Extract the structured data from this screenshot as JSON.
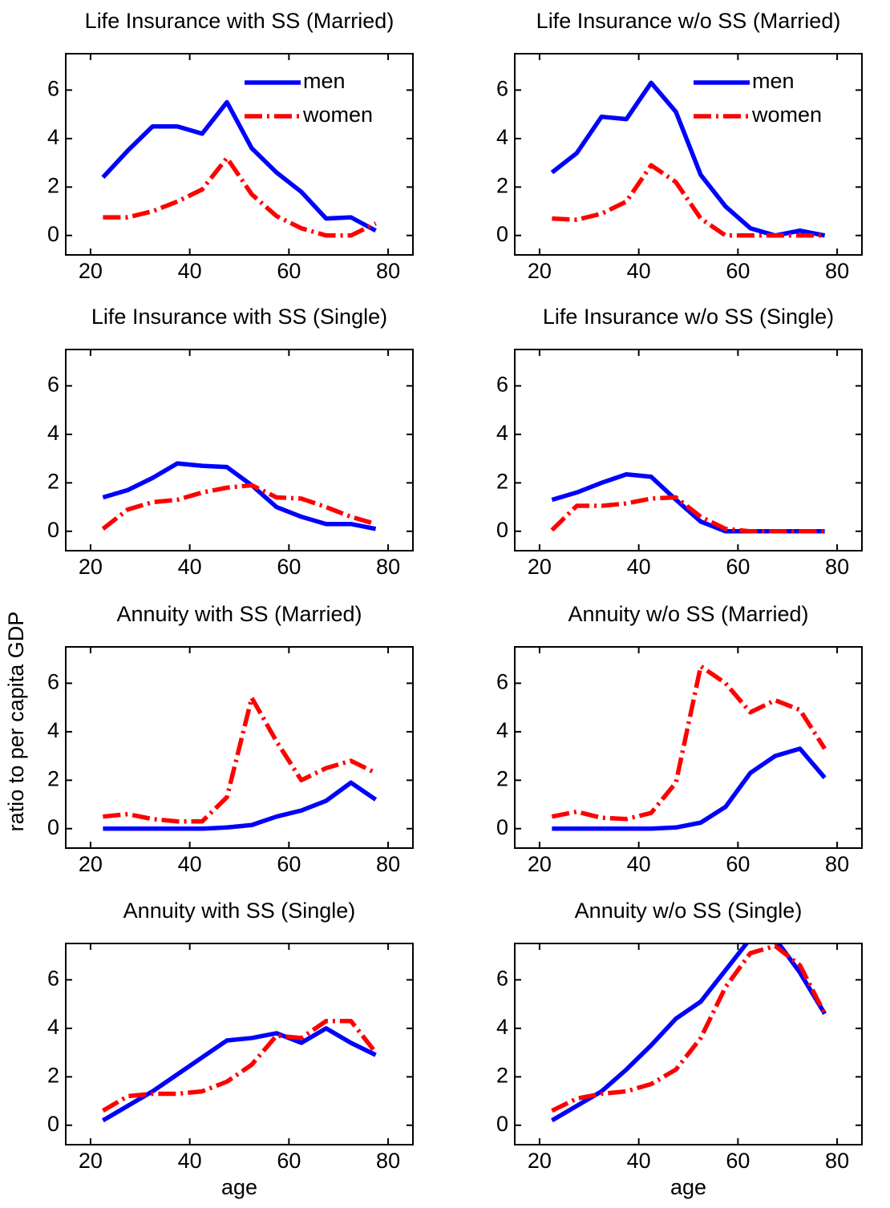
{
  "ylabel": "ratio to per capita GDP",
  "chart_data": [
    {
      "type": "line",
      "title": "Life Insurance with SS (Married)",
      "legend": "upper right",
      "x": [
        22.5,
        27.5,
        32.5,
        37.5,
        42.5,
        47.5,
        52.5,
        57.5,
        62.5,
        67.5,
        72.5,
        77.5
      ],
      "series": [
        {
          "name": "men",
          "color": "#0000ff",
          "style": "solid",
          "values": [
            2.4,
            3.5,
            4.5,
            4.5,
            4.2,
            5.5,
            3.6,
            2.6,
            1.8,
            0.7,
            0.75,
            0.2
          ]
        },
        {
          "name": "women",
          "color": "#ff0000",
          "style": "dashdot",
          "values": [
            0.75,
            0.75,
            1.0,
            1.4,
            1.9,
            3.2,
            1.7,
            0.8,
            0.3,
            0,
            0,
            0.5
          ]
        }
      ],
      "xlim": [
        15,
        85
      ],
      "ylim": [
        -0.8,
        7.5
      ],
      "xticks": [
        20,
        40,
        60,
        80
      ],
      "yticks": [
        0,
        2,
        4,
        6
      ]
    },
    {
      "type": "line",
      "title": "Life Insurance w/o SS (Married)",
      "legend": "upper right",
      "x": [
        22.5,
        27.5,
        32.5,
        37.5,
        42.5,
        47.5,
        52.5,
        57.5,
        62.5,
        67.5,
        72.5,
        77.5
      ],
      "series": [
        {
          "name": "men",
          "color": "#0000ff",
          "style": "solid",
          "values": [
            2.6,
            3.4,
            4.9,
            4.8,
            6.3,
            5.1,
            2.5,
            1.2,
            0.3,
            0,
            0.2,
            0
          ]
        },
        {
          "name": "women",
          "color": "#ff0000",
          "style": "dashdot",
          "values": [
            0.7,
            0.65,
            0.9,
            1.4,
            2.9,
            2.2,
            0.7,
            0,
            0,
            0,
            0,
            0
          ]
        }
      ],
      "xlim": [
        15,
        85
      ],
      "ylim": [
        -0.8,
        7.5
      ],
      "xticks": [
        20,
        40,
        60,
        80
      ],
      "yticks": [
        0,
        2,
        4,
        6
      ]
    },
    {
      "type": "line",
      "title": "Life Insurance with SS (Single)",
      "x": [
        22.5,
        27.5,
        32.5,
        37.5,
        42.5,
        47.5,
        52.5,
        57.5,
        62.5,
        67.5,
        72.5,
        77.5
      ],
      "series": [
        {
          "color": "#0000ff",
          "style": "solid",
          "values": [
            1.4,
            1.7,
            2.2,
            2.8,
            2.7,
            2.65,
            1.9,
            1.0,
            0.6,
            0.3,
            0.3,
            0.1
          ]
        },
        {
          "color": "#ff0000",
          "style": "dashdot",
          "values": [
            0.1,
            0.9,
            1.2,
            1.3,
            1.6,
            1.8,
            1.9,
            1.4,
            1.35,
            1.0,
            0.6,
            0.3
          ]
        }
      ],
      "xlim": [
        15,
        85
      ],
      "ylim": [
        -0.8,
        7.5
      ],
      "xticks": [
        20,
        40,
        60,
        80
      ],
      "yticks": [
        0,
        2,
        4,
        6
      ]
    },
    {
      "type": "line",
      "title": "Life Insurance w/o SS (Single)",
      "x": [
        22.5,
        27.5,
        32.5,
        37.5,
        42.5,
        47.5,
        52.5,
        57.5,
        62.5,
        67.5,
        72.5,
        77.5
      ],
      "series": [
        {
          "color": "#0000ff",
          "style": "solid",
          "values": [
            1.3,
            1.6,
            2.0,
            2.35,
            2.25,
            1.3,
            0.4,
            0,
            0,
            0,
            0,
            0
          ]
        },
        {
          "color": "#ff0000",
          "style": "dashdot",
          "values": [
            0.05,
            1.05,
            1.05,
            1.15,
            1.35,
            1.4,
            0.6,
            0.1,
            0,
            0,
            0,
            0
          ]
        }
      ],
      "xlim": [
        15,
        85
      ],
      "ylim": [
        -0.8,
        7.5
      ],
      "xticks": [
        20,
        40,
        60,
        80
      ],
      "yticks": [
        0,
        2,
        4,
        6
      ]
    },
    {
      "type": "line",
      "title": "Annuity with SS (Married)",
      "x": [
        22.5,
        27.5,
        32.5,
        37.5,
        42.5,
        47.5,
        52.5,
        57.5,
        62.5,
        67.5,
        72.5,
        77.5
      ],
      "series": [
        {
          "color": "#0000ff",
          "style": "solid",
          "values": [
            0,
            0,
            0,
            0,
            0,
            0.05,
            0.15,
            0.5,
            0.75,
            1.15,
            1.9,
            1.2
          ]
        },
        {
          "color": "#ff0000",
          "style": "dashdot",
          "values": [
            0.5,
            0.6,
            0.4,
            0.3,
            0.3,
            1.3,
            5.4,
            3.6,
            2.0,
            2.5,
            2.8,
            2.3
          ]
        }
      ],
      "xlim": [
        15,
        85
      ],
      "ylim": [
        -0.8,
        7.5
      ],
      "xticks": [
        20,
        40,
        60,
        80
      ],
      "yticks": [
        0,
        2,
        4,
        6
      ]
    },
    {
      "type": "line",
      "title": "Annuity w/o SS (Married)",
      "x": [
        22.5,
        27.5,
        32.5,
        37.5,
        42.5,
        47.5,
        52.5,
        57.5,
        62.5,
        67.5,
        72.5,
        77.5
      ],
      "series": [
        {
          "color": "#0000ff",
          "style": "solid",
          "values": [
            0,
            0,
            0,
            0,
            0,
            0.05,
            0.25,
            0.9,
            2.3,
            3.0,
            3.3,
            2.1
          ]
        },
        {
          "color": "#ff0000",
          "style": "dashdot",
          "values": [
            0.5,
            0.7,
            0.45,
            0.4,
            0.65,
            1.9,
            6.7,
            6.0,
            4.8,
            5.3,
            4.9,
            3.3
          ]
        }
      ],
      "xlim": [
        15,
        85
      ],
      "ylim": [
        -0.8,
        7.5
      ],
      "xticks": [
        20,
        40,
        60,
        80
      ],
      "yticks": [
        0,
        2,
        4,
        6
      ]
    },
    {
      "type": "line",
      "title": "Annuity with SS (Single)",
      "xlabel": "age",
      "x": [
        22.5,
        27.5,
        32.5,
        37.5,
        42.5,
        47.5,
        52.5,
        57.5,
        62.5,
        67.5,
        72.5,
        77.5
      ],
      "series": [
        {
          "color": "#0000ff",
          "style": "solid",
          "values": [
            0.2,
            0.8,
            1.4,
            2.1,
            2.8,
            3.5,
            3.6,
            3.8,
            3.4,
            4.0,
            3.4,
            2.9
          ]
        },
        {
          "color": "#ff0000",
          "style": "dashdot",
          "values": [
            0.6,
            1.2,
            1.3,
            1.3,
            1.4,
            1.8,
            2.5,
            3.7,
            3.6,
            4.3,
            4.3,
            3.0
          ]
        }
      ],
      "xlim": [
        15,
        85
      ],
      "ylim": [
        -0.8,
        7.5
      ],
      "xticks": [
        20,
        40,
        60,
        80
      ],
      "yticks": [
        0,
        2,
        4,
        6
      ]
    },
    {
      "type": "line",
      "title": "Annuity w/o SS (Single)",
      "xlabel": "age",
      "x": [
        22.5,
        27.5,
        32.5,
        37.5,
        42.5,
        47.5,
        52.5,
        57.5,
        62.5,
        67.5,
        72.5,
        77.5
      ],
      "series": [
        {
          "color": "#0000ff",
          "style": "solid",
          "values": [
            0.2,
            0.8,
            1.4,
            2.3,
            3.3,
            4.4,
            5.1,
            6.4,
            7.7,
            7.7,
            6.3,
            4.6
          ]
        },
        {
          "color": "#ff0000",
          "style": "dashdot",
          "values": [
            0.6,
            1.1,
            1.3,
            1.4,
            1.7,
            2.3,
            3.6,
            5.7,
            7.1,
            7.4,
            6.6,
            4.6
          ]
        }
      ],
      "xlim": [
        15,
        85
      ],
      "ylim": [
        -0.8,
        7.5
      ],
      "xticks": [
        20,
        40,
        60,
        80
      ],
      "yticks": [
        0,
        2,
        4,
        6
      ]
    }
  ]
}
